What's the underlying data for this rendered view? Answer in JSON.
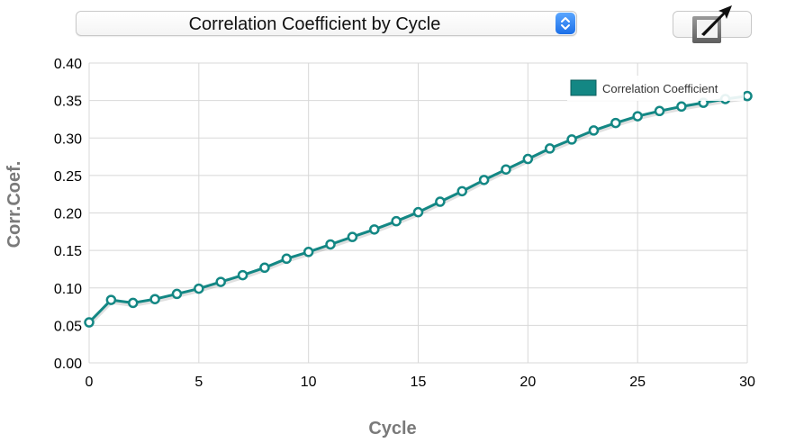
{
  "selector": {
    "label": "Correlation Coefficient by Cycle"
  },
  "colors": {
    "series": "#138784",
    "grid": "#d8d8d8",
    "axis_title": "#7a7a7a"
  },
  "icons": {
    "selector_stepper": "up-down-chevron-icon",
    "expand": "expand-arrow-icon"
  },
  "chart_data": {
    "type": "line",
    "title": "",
    "xlabel": "Cycle",
    "ylabel": "Corr.Coef.",
    "xlim": [
      0,
      30
    ],
    "ylim": [
      0,
      0.4
    ],
    "x_ticks": [
      "0",
      "5",
      "10",
      "15",
      "20",
      "25",
      "30"
    ],
    "y_ticks": [
      "0.00",
      "0.05",
      "0.10",
      "0.15",
      "0.20",
      "0.25",
      "0.30",
      "0.35",
      "0.40"
    ],
    "grid": true,
    "legend_position": "top-right",
    "series": [
      {
        "name": "Correlation Coefficient",
        "color": "#138784",
        "x": [
          0,
          1,
          2,
          3,
          4,
          5,
          6,
          7,
          8,
          9,
          10,
          11,
          12,
          13,
          14,
          15,
          16,
          17,
          18,
          19,
          20,
          21,
          22,
          23,
          24,
          25,
          26,
          27,
          28,
          29,
          30
        ],
        "y": [
          0.054,
          0.084,
          0.08,
          0.085,
          0.092,
          0.099,
          0.108,
          0.117,
          0.127,
          0.139,
          0.148,
          0.158,
          0.168,
          0.178,
          0.189,
          0.201,
          0.215,
          0.229,
          0.244,
          0.258,
          0.272,
          0.286,
          0.298,
          0.31,
          0.32,
          0.329,
          0.336,
          0.342,
          0.347,
          0.352,
          0.356
        ]
      }
    ]
  }
}
